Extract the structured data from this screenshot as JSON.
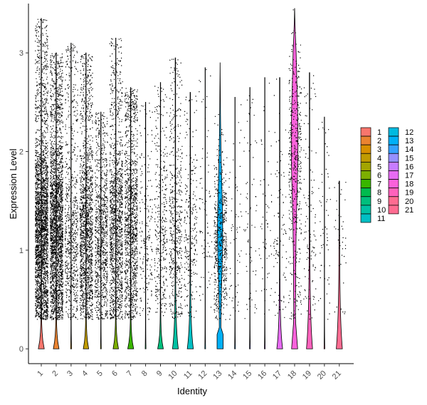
{
  "chart_data": {
    "type": "violin",
    "xlabel": "Identity",
    "ylabel": "Expression Level",
    "ylim": [
      -0.15,
      3.5
    ],
    "yticks": [
      0,
      1,
      2,
      3
    ],
    "categories": [
      "1",
      "2",
      "3",
      "4",
      "5",
      "6",
      "7",
      "8",
      "9",
      "10",
      "11",
      "12",
      "13",
      "14",
      "15",
      "16",
      "17",
      "18",
      "19",
      "20",
      "21"
    ],
    "colors": [
      "#F8766D",
      "#EA8331",
      "#D89000",
      "#C09B00",
      "#A3A500",
      "#7CAE00",
      "#39B600",
      "#00BB4E",
      "#00BF7D",
      "#00C1A3",
      "#00BFC4",
      "#00BAE0",
      "#00B0F6",
      "#35A2FF",
      "#9590FF",
      "#C77CFF",
      "#E76BF3",
      "#FA62DB",
      "#FF62BC",
      "#FF6C91",
      "#FF6C91"
    ],
    "legend": {
      "position": "right",
      "entries": [
        "1",
        "2",
        "3",
        "4",
        "5",
        "6",
        "7",
        "8",
        "9",
        "10",
        "11",
        "12",
        "13",
        "14",
        "15",
        "16",
        "17",
        "18",
        "19",
        "20",
        "21"
      ]
    },
    "series": [
      {
        "cluster": "1",
        "max": 3.35,
        "dots": 2600,
        "pct_nonzero": 0.88,
        "violin_peak_width": 0.42
      },
      {
        "cluster": "2",
        "max": 3.0,
        "dots": 2400,
        "pct_nonzero": 0.85,
        "violin_peak_width": 0.4
      },
      {
        "cluster": "3",
        "max": 3.1,
        "dots": 700,
        "pct_nonzero": 0.55,
        "violin_peak_width": 0.05
      },
      {
        "cluster": "4",
        "max": 3.0,
        "dots": 1500,
        "pct_nonzero": 0.8,
        "violin_peak_width": 0.38
      },
      {
        "cluster": "5",
        "max": 2.4,
        "dots": 900,
        "pct_nonzero": 0.6,
        "violin_peak_width": 0.04
      },
      {
        "cluster": "6",
        "max": 3.15,
        "dots": 1300,
        "pct_nonzero": 0.78,
        "violin_peak_width": 0.38
      },
      {
        "cluster": "7",
        "max": 2.65,
        "dots": 1200,
        "pct_nonzero": 0.8,
        "violin_peak_width": 0.42
      },
      {
        "cluster": "8",
        "max": 2.5,
        "dots": 200,
        "pct_nonzero": 0.3,
        "violin_peak_width": 0.04
      },
      {
        "cluster": "9",
        "max": 2.7,
        "dots": 350,
        "pct_nonzero": 0.45,
        "violin_peak_width": 0.4
      },
      {
        "cluster": "10",
        "max": 2.95,
        "dots": 500,
        "pct_nonzero": 0.6,
        "violin_peak_width": 0.4
      },
      {
        "cluster": "11",
        "max": 2.6,
        "dots": 250,
        "pct_nonzero": 0.5,
        "violin_peak_width": 0.42
      },
      {
        "cluster": "12",
        "max": 2.85,
        "dots": 80,
        "pct_nonzero": 0.2,
        "violin_peak_width": 0.04
      },
      {
        "cluster": "13",
        "max": 2.9,
        "dots": 550,
        "pct_nonzero": 0.9,
        "violin_peak_width": 0.42
      },
      {
        "cluster": "14",
        "max": 2.55,
        "dots": 60,
        "pct_nonzero": 0.15,
        "violin_peak_width": 0.04
      },
      {
        "cluster": "15",
        "max": 2.65,
        "dots": 70,
        "pct_nonzero": 0.2,
        "violin_peak_width": 0.04
      },
      {
        "cluster": "16",
        "max": 2.75,
        "dots": 60,
        "pct_nonzero": 0.25,
        "violin_peak_width": 0.04
      },
      {
        "cluster": "17",
        "max": 2.75,
        "dots": 100,
        "pct_nonzero": 0.3,
        "violin_peak_width": 0.4
      },
      {
        "cluster": "18",
        "max": 3.45,
        "dots": 450,
        "pct_nonzero": 0.95,
        "violin_peak_width": 0.45
      },
      {
        "cluster": "19",
        "max": 2.8,
        "dots": 120,
        "pct_nonzero": 0.45,
        "violin_peak_width": 0.42
      },
      {
        "cluster": "20",
        "max": 2.35,
        "dots": 60,
        "pct_nonzero": 0.2,
        "violin_peak_width": 0.04
      },
      {
        "cluster": "21",
        "max": 1.7,
        "dots": 40,
        "pct_nonzero": 0.3,
        "violin_peak_width": 0.42
      }
    ]
  }
}
